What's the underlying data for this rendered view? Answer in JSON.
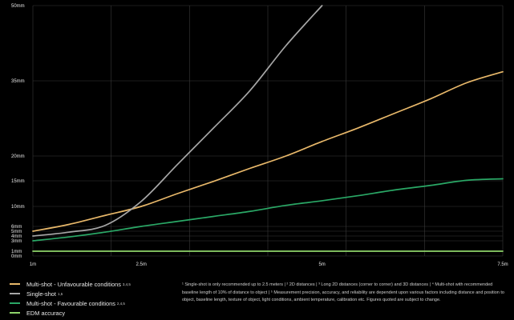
{
  "chart_data": {
    "type": "line",
    "x_ticks": [
      "1m",
      "2.5m",
      "5m",
      "7.5m"
    ],
    "x_tick_values": [
      1,
      2.5,
      5,
      7.5
    ],
    "xlim": [
      1,
      7.5
    ],
    "y_ticks": [
      "0mm",
      "1mm",
      "3mm",
      "4mm",
      "5mm",
      "6mm",
      "10mm",
      "15mm",
      "20mm",
      "35mm",
      "50mm"
    ],
    "y_tick_values": [
      0,
      1,
      3,
      4,
      5,
      6,
      10,
      15,
      20,
      35,
      50
    ],
    "grid": true,
    "legend_position": "bottom-left",
    "series": [
      {
        "name": "Multi-shot - Unfavourable conditions",
        "superscript": "3,4,5",
        "color": "#e8b86a",
        "x": [
          1,
          1.5,
          2,
          2.5,
          3,
          3.5,
          4,
          4.5,
          5,
          5.5,
          6,
          6.5,
          7,
          7.5
        ],
        "y": [
          5,
          6.4,
          8.2,
          10,
          12.5,
          14.9,
          17.5,
          20,
          22.9,
          25.6,
          28.5,
          31.4,
          34.6,
          36.8
        ]
      },
      {
        "name": "Single-shot",
        "superscript": "1,5",
        "color": "#a6a6a6",
        "x": [
          1,
          1.5,
          2,
          2.5,
          3,
          3.5,
          4,
          4.5,
          5
        ],
        "y": [
          4,
          4.8,
          6.2,
          11,
          18.3,
          25.6,
          33,
          42,
          50
        ]
      },
      {
        "name": "Multi-shot - Favourable conditions",
        "superscript": "2,4,5",
        "color": "#2aa866",
        "x": [
          1,
          1.5,
          2,
          2.5,
          3,
          3.5,
          4,
          4.5,
          5,
          5.5,
          6,
          6.5,
          7,
          7.5
        ],
        "y": [
          3,
          3.8,
          4.8,
          6,
          7,
          8,
          9,
          10.2,
          11.1,
          12.1,
          13.2,
          14.1,
          15.1,
          15.4
        ]
      },
      {
        "name": "EDM accuracy",
        "superscript": "",
        "color": "#8ed46a",
        "x": [
          1,
          7.5
        ],
        "y": [
          1,
          1
        ]
      }
    ]
  },
  "footnote": "¹ Single-shot is only recommended up to 2.5 meters | ² 2D distances | ³ Long 2D distances (corner to corner) and 3D distances | ⁴ Multi-shot with recommended baseline length of 10% of distance to object | ⁵ Measurement precision, accuracy, and reliability are dependent upon various factors including distance and position to object, baseline length, texture of object, light conditions, ambient temperature, calibration etc. Figures quoted are subject to change."
}
